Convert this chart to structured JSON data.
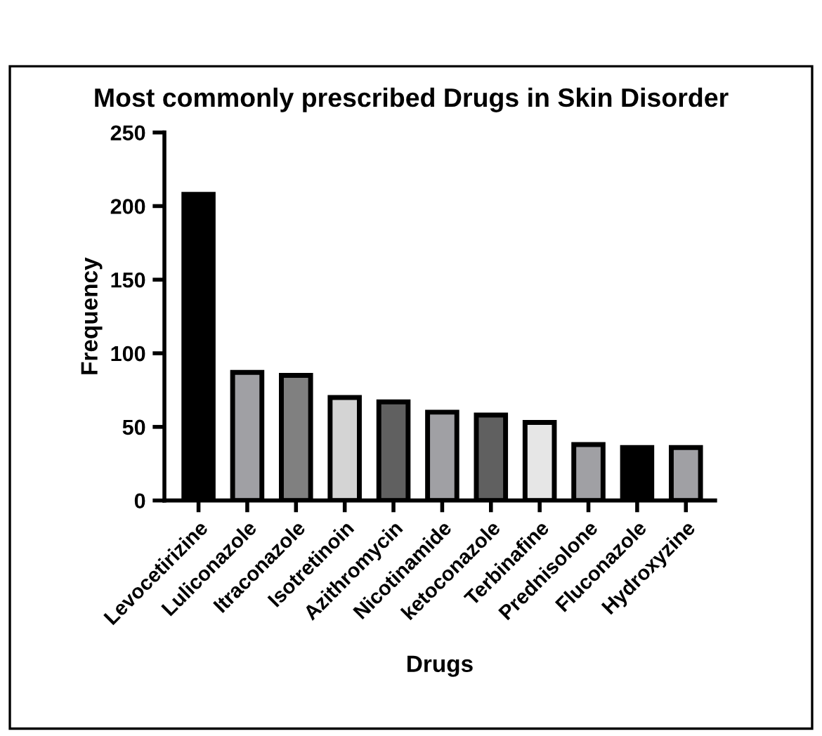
{
  "chart_data": {
    "type": "bar",
    "title": "Most commonly prescribed Drugs in Skin Disorder",
    "xlabel": "Drugs",
    "ylabel": "Frequency",
    "categories": [
      "Levocetirizine",
      "Luliconazole",
      "Itraconazole",
      "Isotretinoin",
      "Azithromycin",
      "Nicotinamide",
      "ketoconazole",
      "Terbinafine",
      "Prednisolone",
      "Fluconazole",
      "Hydroxyzine"
    ],
    "values": [
      208,
      87,
      85,
      70,
      67,
      60,
      58,
      53,
      38,
      36,
      36
    ],
    "colors": [
      "#000000",
      "#a0a0a4",
      "#808080",
      "#d4d4d4",
      "#606060",
      "#a0a0a4",
      "#606060",
      "#e6e6e6",
      "#a0a0a4",
      "#000000",
      "#a0a0a4"
    ],
    "ylim": [
      0,
      250
    ],
    "yticks": [
      0,
      50,
      100,
      150,
      200,
      250
    ],
    "grid": false,
    "legend": false
  }
}
